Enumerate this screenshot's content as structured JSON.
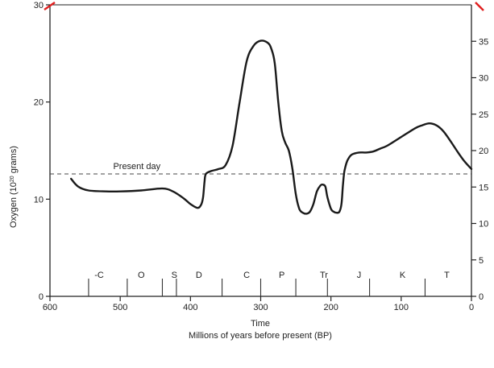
{
  "chart_data": {
    "type": "line",
    "xlabel": "Time",
    "xlabel_sub": "Millions of years before present (BP)",
    "ylabel": "Oxygen (10",
    "ylabel_sup": "20",
    "ylabel_tail": " grams)",
    "xlim": [
      600,
      0
    ],
    "ylim": [
      0,
      30
    ],
    "y2lim": [
      0,
      40
    ],
    "x_ticks": [
      600,
      500,
      400,
      300,
      200,
      100,
      0
    ],
    "y_ticks": [
      0,
      10,
      20,
      30
    ],
    "y2_ticks": [
      0,
      5,
      10,
      15,
      20,
      25,
      30,
      35
    ],
    "x_tick_labels": [
      "600",
      "500",
      "400",
      "300",
      "200",
      "100",
      "0"
    ],
    "y_tick_labels": [
      "0",
      "10",
      "20",
      "30"
    ],
    "y2_tick_labels": [
      "0",
      "5",
      "10",
      "15",
      "20",
      "25",
      "30",
      "35"
    ],
    "reference_line": {
      "label": "Present day",
      "y": 12.6
    },
    "periods": [
      {
        "label": "-C",
        "x": 530
      },
      {
        "label": "O",
        "x": 470
      },
      {
        "label": "S",
        "x": 423
      },
      {
        "label": "D",
        "x": 388
      },
      {
        "label": "C",
        "x": 320
      },
      {
        "label": "P",
        "x": 270
      },
      {
        "label": "Tr",
        "x": 210
      },
      {
        "label": "J",
        "x": 160
      },
      {
        "label": "K",
        "x": 98
      },
      {
        "label": "T",
        "x": 35
      }
    ],
    "period_boundaries": [
      545,
      490,
      440,
      420,
      355,
      300,
      250,
      205,
      145,
      66
    ],
    "series": [
      {
        "x": [
          570,
          560,
          545,
          520,
          500,
          470,
          440,
          425,
          410,
          400,
          390,
          385,
          382,
          380,
          378,
          370,
          360,
          350,
          340,
          330,
          320,
          310,
          300,
          290,
          285,
          280,
          275,
          270,
          265,
          260,
          255,
          250,
          245,
          240,
          235,
          230,
          225,
          220,
          215,
          212,
          208,
          205,
          200,
          196,
          192,
          188,
          185,
          183,
          181,
          178,
          175,
          170,
          160,
          150,
          140,
          130,
          120,
          100,
          80,
          70,
          60,
          50,
          40,
          30,
          20,
          10,
          0
        ],
        "y": [
          12.1,
          11.3,
          10.9,
          10.8,
          10.8,
          10.9,
          11.1,
          10.8,
          10.1,
          9.5,
          9.1,
          9.4,
          10.2,
          11.8,
          12.6,
          12.9,
          13.1,
          13.5,
          15.5,
          20.0,
          24.2,
          25.8,
          26.3,
          26.1,
          25.5,
          24.0,
          20.0,
          17.0,
          15.8,
          15.0,
          13.2,
          10.5,
          9.0,
          8.6,
          8.5,
          8.7,
          9.5,
          10.8,
          11.4,
          11.5,
          11.3,
          10.2,
          9.0,
          8.7,
          8.6,
          8.7,
          9.5,
          11.4,
          12.8,
          13.7,
          14.2,
          14.6,
          14.8,
          14.8,
          14.9,
          15.2,
          15.5,
          16.4,
          17.3,
          17.6,
          17.8,
          17.6,
          17.0,
          16.0,
          14.9,
          13.9,
          13.1
        ]
      }
    ]
  }
}
